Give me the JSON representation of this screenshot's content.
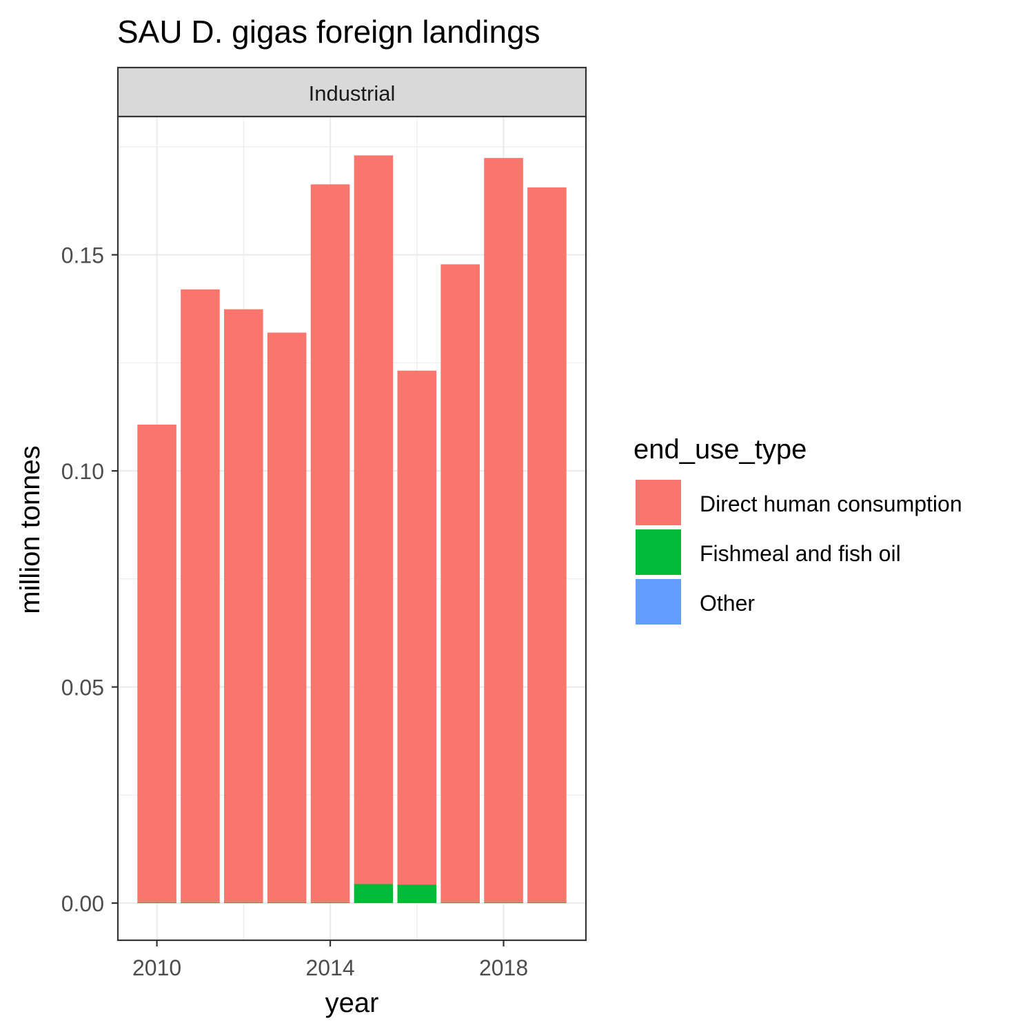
{
  "chart_data": {
    "type": "bar",
    "stacked": true,
    "title": "SAU D. gigas foreign landings",
    "facet_label": "Industrial",
    "xlabel": "year",
    "ylabel": "million tonnes",
    "x": [
      2010,
      2011,
      2012,
      2013,
      2014,
      2015,
      2016,
      2017,
      2018,
      2019
    ],
    "x_ticks": [
      2010,
      2014,
      2018
    ],
    "y_ticks": [
      0.0,
      0.05,
      0.1,
      0.15
    ],
    "y_tick_labels": [
      "0.00",
      "0.05",
      "0.10",
      "0.15"
    ],
    "xlim": [
      2009.1,
      2019.9
    ],
    "ylim": [
      -0.0086,
      0.182
    ],
    "grid": true,
    "legend": {
      "title": "end_use_type",
      "position": "right"
    },
    "series": [
      {
        "name": "Direct human consumption",
        "color": "#F8766D",
        "values": [
          0.1105,
          0.1418,
          0.1372,
          0.1318,
          0.1661,
          0.1686,
          0.1189,
          0.1476,
          0.1722,
          0.1654
        ]
      },
      {
        "name": "Fishmeal and fish oil",
        "color": "#00BA38",
        "values": [
          0.0002,
          0.0002,
          0.0002,
          0.0002,
          0.0002,
          0.0044,
          0.0043,
          0.0002,
          0.0002,
          0.0002
        ]
      },
      {
        "name": "Other",
        "color": "#619CFF",
        "values": [
          0,
          0,
          0,
          0,
          0,
          0,
          0,
          0,
          0,
          0
        ]
      }
    ]
  }
}
